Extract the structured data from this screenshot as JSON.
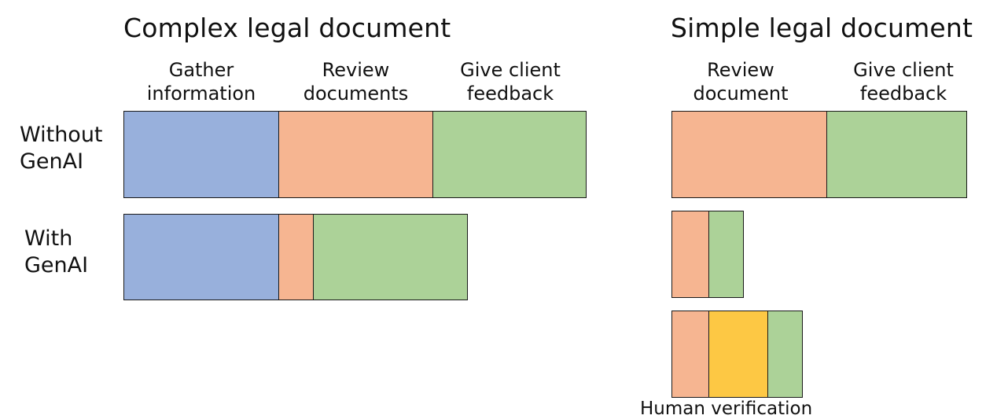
{
  "colors": {
    "gather": "#98b0dc",
    "review": "#f6b591",
    "feedback": "#acd298",
    "verification": "#fdc844"
  },
  "complex": {
    "title": "Complex legal document",
    "headers": {
      "gather": "Gather information",
      "review": "Review documents",
      "feedback": "Give client feedback"
    },
    "rows": {
      "without_label": "Without GenAI",
      "with_label": "With GenAI"
    }
  },
  "simple": {
    "title": "Simple legal document",
    "headers": {
      "review": "Review document",
      "feedback": "Give client feedback"
    },
    "verification_caption": "Human verification"
  }
}
